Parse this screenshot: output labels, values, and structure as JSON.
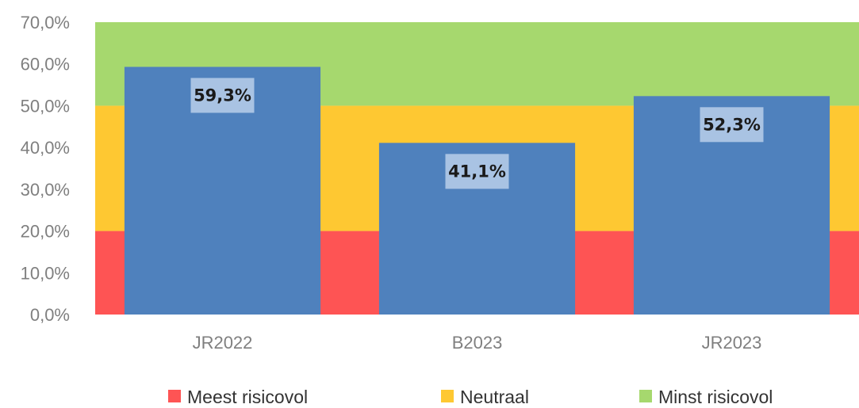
{
  "chart_data": {
    "type": "bar",
    "categories": [
      "JR2022",
      "B2023",
      "JR2023"
    ],
    "series": [
      {
        "values": [
          59.3,
          41.1,
          52.3
        ],
        "labels": [
          "59,3%",
          "41,1%",
          "52,3%"
        ],
        "color": "#4f81bd"
      }
    ],
    "background_bands": [
      {
        "name": "Meest risicovol",
        "from": 0,
        "to": 20,
        "color": "#fe5454"
      },
      {
        "name": "Neutraal",
        "from": 20,
        "to": 50,
        "color": "#fec832"
      },
      {
        "name": "Minst risicovol",
        "from": 50,
        "to": 70,
        "color": "#a6d86e"
      }
    ],
    "ylim": [
      0,
      70
    ],
    "yticks": [
      0,
      10,
      20,
      30,
      40,
      50,
      60,
      70
    ],
    "ytick_labels": [
      "0,0%",
      "10,0%",
      "20,0%",
      "30,0%",
      "40,0%",
      "50,0%",
      "60,0%",
      "70,0%"
    ],
    "grid": false,
    "legend_position": "bottom",
    "title": "",
    "xlabel": "",
    "ylabel": ""
  },
  "colors": {
    "label_box": "#a9c3e3",
    "axis_text": "#7f7f7f"
  }
}
